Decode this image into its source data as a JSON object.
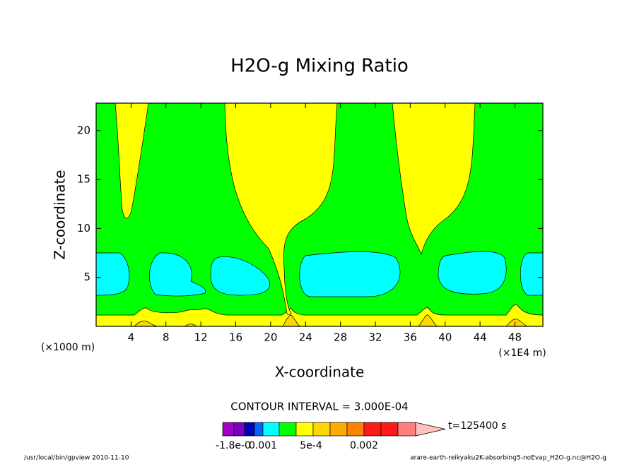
{
  "chart_data": {
    "type": "contour",
    "title": "H2O-g Mixing Ratio",
    "xlabel": "X-coordinate",
    "ylabel": "Z-coordinate",
    "x_unit": "(×1E4 m)",
    "y_unit": "(×1000 m)",
    "xlim": [
      0,
      51.2
    ],
    "xticks": [
      4,
      8,
      12,
      16,
      20,
      24,
      28,
      32,
      36,
      40,
      44,
      48
    ],
    "ylim": [
      0,
      22.8
    ],
    "yticks": [
      5,
      10,
      15,
      20
    ],
    "contour_interval": "CONTOUR INTERVAL = 3.000E-04",
    "time_label": "t=125400 s",
    "colorbar_colors": [
      "#a000c8",
      "#7a00c0",
      "#0000b4",
      "#0064ff",
      "#00ffff",
      "#00ff00",
      "#ffff00",
      "#ffd700",
      "#ffaa00",
      "#ff8000",
      "#ff1a1a",
      "#ff1a1a",
      "#ff7f7f",
      "#ffc0c0"
    ],
    "colorbar_labels": [
      "-1.8e-0",
      "0.001",
      "5e-4",
      "0.002"
    ],
    "footer_left": "/usr/local/bin/gpview  2010-11-10",
    "footer_right": "arare-earth-reikyaku2K-absorbing5-noEvap_H2O-g.nc@H2O-g"
  }
}
